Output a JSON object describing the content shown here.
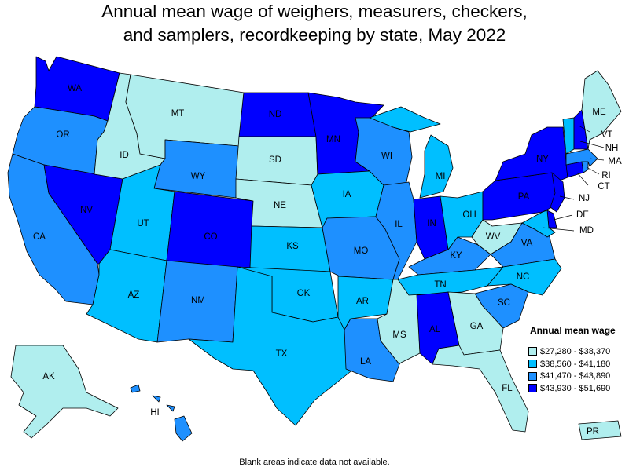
{
  "title": {
    "line1": "Annual mean wage of weighers, measurers, checkers,",
    "line2": "and samplers, recordkeeping by state, May 2022"
  },
  "legend": {
    "title": "Annual mean wage",
    "items": [
      {
        "label": "$27,280 - $38,370",
        "color": "#b0eeee"
      },
      {
        "label": "$38,560 - $41,180",
        "color": "#00bfff"
      },
      {
        "label": "$41,470 - $43,890",
        "color": "#1e90ff"
      },
      {
        "label": "$43,930 - $51,690",
        "color": "#0000ff"
      }
    ]
  },
  "footnote": "Blank areas indicate data not available.",
  "states": [
    {
      "abbr": "WA",
      "bin": 3
    },
    {
      "abbr": "OR",
      "bin": 2
    },
    {
      "abbr": "CA",
      "bin": 2
    },
    {
      "abbr": "NV",
      "bin": 3
    },
    {
      "abbr": "ID",
      "bin": 0
    },
    {
      "abbr": "MT",
      "bin": 0
    },
    {
      "abbr": "WY",
      "bin": 2
    },
    {
      "abbr": "UT",
      "bin": 1
    },
    {
      "abbr": "AZ",
      "bin": 1
    },
    {
      "abbr": "CO",
      "bin": 3
    },
    {
      "abbr": "NM",
      "bin": 2
    },
    {
      "abbr": "ND",
      "bin": 3
    },
    {
      "abbr": "SD",
      "bin": 0
    },
    {
      "abbr": "NE",
      "bin": 0
    },
    {
      "abbr": "KS",
      "bin": 1
    },
    {
      "abbr": "OK",
      "bin": 1
    },
    {
      "abbr": "TX",
      "bin": 1
    },
    {
      "abbr": "MN",
      "bin": 3
    },
    {
      "abbr": "IA",
      "bin": 1
    },
    {
      "abbr": "MO",
      "bin": 2
    },
    {
      "abbr": "AR",
      "bin": 1
    },
    {
      "abbr": "LA",
      "bin": 2
    },
    {
      "abbr": "WI",
      "bin": 2
    },
    {
      "abbr": "IL",
      "bin": 2
    },
    {
      "abbr": "MS",
      "bin": 0
    },
    {
      "abbr": "MI",
      "bin": 1
    },
    {
      "abbr": "IN",
      "bin": 3
    },
    {
      "abbr": "KY",
      "bin": 2
    },
    {
      "abbr": "TN",
      "bin": 1
    },
    {
      "abbr": "AL",
      "bin": 3
    },
    {
      "abbr": "OH",
      "bin": 1
    },
    {
      "abbr": "WV",
      "bin": 0
    },
    {
      "abbr": "VA",
      "bin": 2
    },
    {
      "abbr": "NC",
      "bin": 1
    },
    {
      "abbr": "SC",
      "bin": 2
    },
    {
      "abbr": "GA",
      "bin": 0
    },
    {
      "abbr": "FL",
      "bin": 0
    },
    {
      "abbr": "PA",
      "bin": 3
    },
    {
      "abbr": "NY",
      "bin": 3
    },
    {
      "abbr": "VT",
      "bin": 1
    },
    {
      "abbr": "NH",
      "bin": 3
    },
    {
      "abbr": "ME",
      "bin": 0
    },
    {
      "abbr": "MA",
      "bin": 2
    },
    {
      "abbr": "RI",
      "bin": 2
    },
    {
      "abbr": "CT",
      "bin": 3
    },
    {
      "abbr": "NJ",
      "bin": 3
    },
    {
      "abbr": "DE",
      "bin": 3
    },
    {
      "abbr": "MD",
      "bin": 1
    },
    {
      "abbr": "AK",
      "bin": 0
    },
    {
      "abbr": "HI",
      "bin": 2
    },
    {
      "abbr": "PR",
      "bin": 0
    }
  ]
}
